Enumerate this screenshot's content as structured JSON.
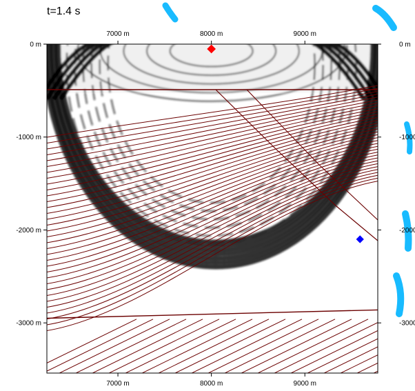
{
  "time_label": "t=1.4 s",
  "axes": {
    "x_ticks": [
      {
        "value": 7000,
        "label": "7000 m"
      },
      {
        "value": 8000,
        "label": "8000 m"
      },
      {
        "value": 9000,
        "label": "9000 m"
      }
    ],
    "y_ticks": [
      {
        "value": 0,
        "label": "0 m"
      },
      {
        "value": -1000,
        "label": "-1000 m"
      },
      {
        "value": -2000,
        "label": "-2000 m"
      },
      {
        "value": -3000,
        "label": "-3000 m"
      }
    ],
    "xlim": [
      6240,
      9780
    ],
    "ylim": [
      -3540,
      0
    ]
  },
  "markers": {
    "source": {
      "x": 8000,
      "y": 0,
      "color": "#ff0000"
    },
    "receiver": {
      "x": 9590,
      "y": -2100,
      "color": "#0000ff"
    }
  },
  "colors": {
    "horizons": "#6b0000",
    "wavefield": "#000000",
    "frame": "#000000",
    "watermark": "#00b4ff"
  }
}
